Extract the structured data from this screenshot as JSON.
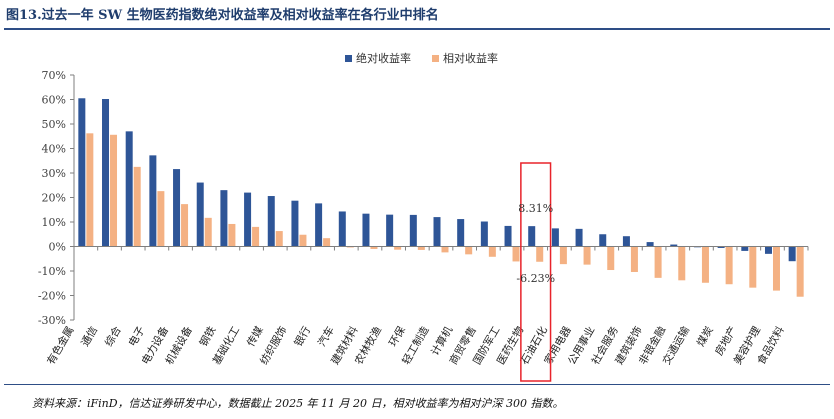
{
  "header": {
    "title": "图13.过去一年 SW 生物医药指数绝对收益率及相对收益率在各行业中排名"
  },
  "footer": {
    "source": "资料来源：iFinD，信达证券研发中心，数据截止 2025 年 11 月 20 日，相对收益率为相对沪深 300 指数。"
  },
  "colors": {
    "absolute": "#2e5597",
    "relative": "#f4b183",
    "highlight_box": "#e8232a"
  },
  "chart_data": {
    "type": "bar",
    "title": "",
    "xlabel": "",
    "ylabel": "",
    "ylim": [
      -30,
      70
    ],
    "ytick_labels": [
      "70%",
      "60%",
      "50%",
      "40%",
      "30%",
      "20%",
      "10%",
      "0%",
      "-10%",
      "-20%",
      "-30%"
    ],
    "grid": false,
    "legend_position": "top-center",
    "categories": [
      "有色金属",
      "通信",
      "综合",
      "电子",
      "电力设备",
      "机械设备",
      "钢铁",
      "基础化工",
      "传媒",
      "纺织服饰",
      "银行",
      "汽车",
      "建筑材料",
      "农林牧渔",
      "环保",
      "轻工制造",
      "计算机",
      "商贸零售",
      "国防军工",
      "医药生物",
      "石油石化",
      "家用电器",
      "公用事业",
      "社会服务",
      "建筑装饰",
      "非银金融",
      "交通运输",
      "煤炭",
      "房地产",
      "美容护理",
      "食品饮料"
    ],
    "series": [
      {
        "name": "绝对收益率",
        "values": [
          60.5,
          60.2,
          47.0,
          37.2,
          31.6,
          26.1,
          23.0,
          22.0,
          20.6,
          18.7,
          17.6,
          14.3,
          13.4,
          13.0,
          12.9,
          12.0,
          11.2,
          10.2,
          8.4,
          8.31,
          7.4,
          7.2,
          5.0,
          4.2,
          1.8,
          0.8,
          -0.3,
          -0.6,
          -1.8,
          -3.0,
          -6.0
        ]
      },
      {
        "name": "相对收益率",
        "values": [
          46.2,
          45.6,
          32.5,
          22.6,
          17.3,
          11.7,
          9.2,
          8.0,
          6.3,
          4.8,
          3.4,
          -0.4,
          -1.0,
          -1.3,
          -1.4,
          -2.4,
          -3.2,
          -4.2,
          -6.1,
          -6.23,
          -7.2,
          -7.4,
          -9.6,
          -10.4,
          -12.8,
          -13.8,
          -14.8,
          -15.4,
          -16.8,
          -18.0,
          -20.5
        ]
      }
    ],
    "highlight": {
      "category": "医药生物",
      "labels": [
        "8.31%",
        "-6.23%"
      ]
    }
  }
}
